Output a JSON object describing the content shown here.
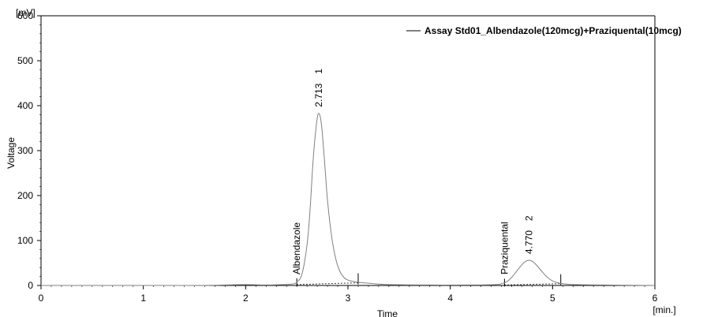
{
  "chart_data": {
    "type": "line",
    "title": "",
    "xlabel": "Time",
    "ylabel": "Voltage",
    "x_unit_label": "[min.]",
    "y_unit_label": "[mV]",
    "xlim": [
      0,
      6
    ],
    "ylim": [
      0,
      600
    ],
    "x_ticks": [
      0,
      1,
      2,
      3,
      4,
      5,
      6
    ],
    "y_ticks": [
      0,
      100,
      200,
      300,
      400,
      500,
      600
    ],
    "x_tick_labels": [
      "0",
      "1",
      "2",
      "3",
      "4",
      "5",
      "6"
    ],
    "y_tick_labels": [
      "0",
      "100",
      "200",
      "300",
      "400",
      "500",
      "600"
    ],
    "grid": false,
    "legend_position": "top-right",
    "series": [
      {
        "name": "Assay Std01_Albendazole(120mcg)+Praziquental(10mcg)",
        "color": "#808080",
        "x": [
          0.0,
          0.5,
          1.0,
          1.5,
          1.8,
          2.0,
          2.2,
          2.45,
          2.5,
          2.55,
          2.6,
          2.63,
          2.66,
          2.69,
          2.713,
          2.74,
          2.77,
          2.8,
          2.84,
          2.88,
          2.92,
          2.96,
          3.0,
          3.05,
          3.1,
          3.2,
          3.4,
          3.8,
          4.2,
          4.45,
          4.5,
          4.55,
          4.6,
          4.65,
          4.7,
          4.74,
          4.77,
          4.8,
          4.84,
          4.9,
          4.95,
          5.0,
          5.05,
          5.1,
          5.2,
          5.5,
          6.0
        ],
        "y": [
          0,
          0,
          0,
          0,
          1,
          2,
          1,
          3,
          8,
          25,
          90,
          170,
          280,
          355,
          383,
          360,
          280,
          190,
          110,
          60,
          32,
          18,
          12,
          9,
          7,
          5,
          2,
          1,
          1,
          2,
          4,
          8,
          18,
          32,
          46,
          54,
          56,
          54,
          46,
          30,
          18,
          10,
          6,
          4,
          2,
          1,
          0
        ]
      }
    ],
    "peaks": [
      {
        "number": "1",
        "time": "2.713",
        "name": "Albendazole",
        "rt": 2.713,
        "height": 383
      },
      {
        "number": "2",
        "time": "4.770",
        "name": "Praziquental",
        "rt": 4.77,
        "height": 56
      }
    ],
    "baselines": [
      {
        "start": [
          2.5,
          2
        ],
        "end": [
          3.1,
          6
        ]
      },
      {
        "start": [
          4.53,
          1
        ],
        "end": [
          5.08,
          4
        ]
      }
    ]
  }
}
